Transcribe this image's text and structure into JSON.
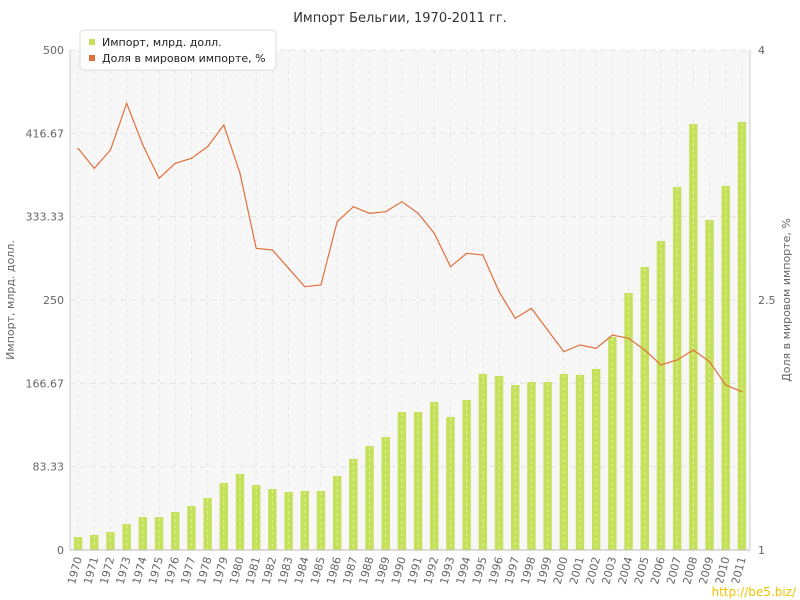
{
  "colors": {
    "import_bar": "#c5e05a",
    "import_bar_stripe": "#e0f09a",
    "share_line": "#e0703c",
    "grid": "#e4e4e4",
    "plot_bg": "#f7f7f7"
  },
  "watermark": "http://be5.biz/",
  "chart_data": {
    "type": "bar+line",
    "title": "Импорт Бельгии, 1970-2011 гг.",
    "legend_position": "top-left",
    "grid": true,
    "categories": [
      "1970",
      "1971",
      "1972",
      "1973",
      "1974",
      "1975",
      "1976",
      "1977",
      "1978",
      "1979",
      "1980",
      "1981",
      "1982",
      "1983",
      "1984",
      "1985",
      "1986",
      "1987",
      "1988",
      "1989",
      "1990",
      "1991",
      "1992",
      "1993",
      "1994",
      "1995",
      "1996",
      "1997",
      "1998",
      "1999",
      "2000",
      "2001",
      "2002",
      "2003",
      "2004",
      "2005",
      "2006",
      "2007",
      "2008",
      "2009",
      "2010",
      "2011"
    ],
    "y_left": {
      "label": "Импорт, млрд. долл.",
      "range": [
        0,
        500
      ],
      "ticks": [
        0,
        83.33,
        166.67,
        250,
        333.33,
        416.67,
        500
      ],
      "tick_labels": [
        "0",
        "83.33",
        "166.67",
        "250",
        "333.33",
        "416.67",
        "500"
      ]
    },
    "y_right": {
      "label": "Доля в мировом импорте, %",
      "range": [
        1,
        4
      ],
      "ticks": [
        1,
        2.5,
        4
      ],
      "tick_labels": [
        "1",
        "2.5",
        "4"
      ]
    },
    "series": [
      {
        "name": "Импорт, млрд. долл.",
        "type": "bar",
        "axis": "left",
        "values": [
          13,
          15,
          18,
          26,
          33,
          33,
          38,
          44,
          52,
          67,
          76,
          65,
          61,
          58,
          59,
          59,
          74,
          91,
          104,
          113,
          138,
          138,
          148,
          133,
          150,
          176,
          174,
          165,
          168,
          168,
          176,
          175,
          181,
          213,
          257,
          283,
          309,
          363,
          426,
          330,
          364,
          428
        ]
      },
      {
        "name": "Доля в мировом импорте, %",
        "type": "line",
        "axis": "right",
        "values": [
          3.41,
          3.29,
          3.4,
          3.68,
          3.43,
          3.23,
          3.32,
          3.35,
          3.42,
          3.55,
          3.26,
          2.81,
          2.8,
          2.69,
          2.58,
          2.59,
          2.97,
          3.06,
          3.02,
          3.03,
          3.09,
          3.02,
          2.9,
          2.7,
          2.78,
          2.77,
          2.55,
          2.39,
          2.45,
          2.32,
          2.19,
          2.23,
          2.21,
          2.29,
          2.27,
          2.2,
          2.11,
          2.14,
          2.2,
          2.13,
          1.99,
          1.95
        ]
      }
    ]
  }
}
